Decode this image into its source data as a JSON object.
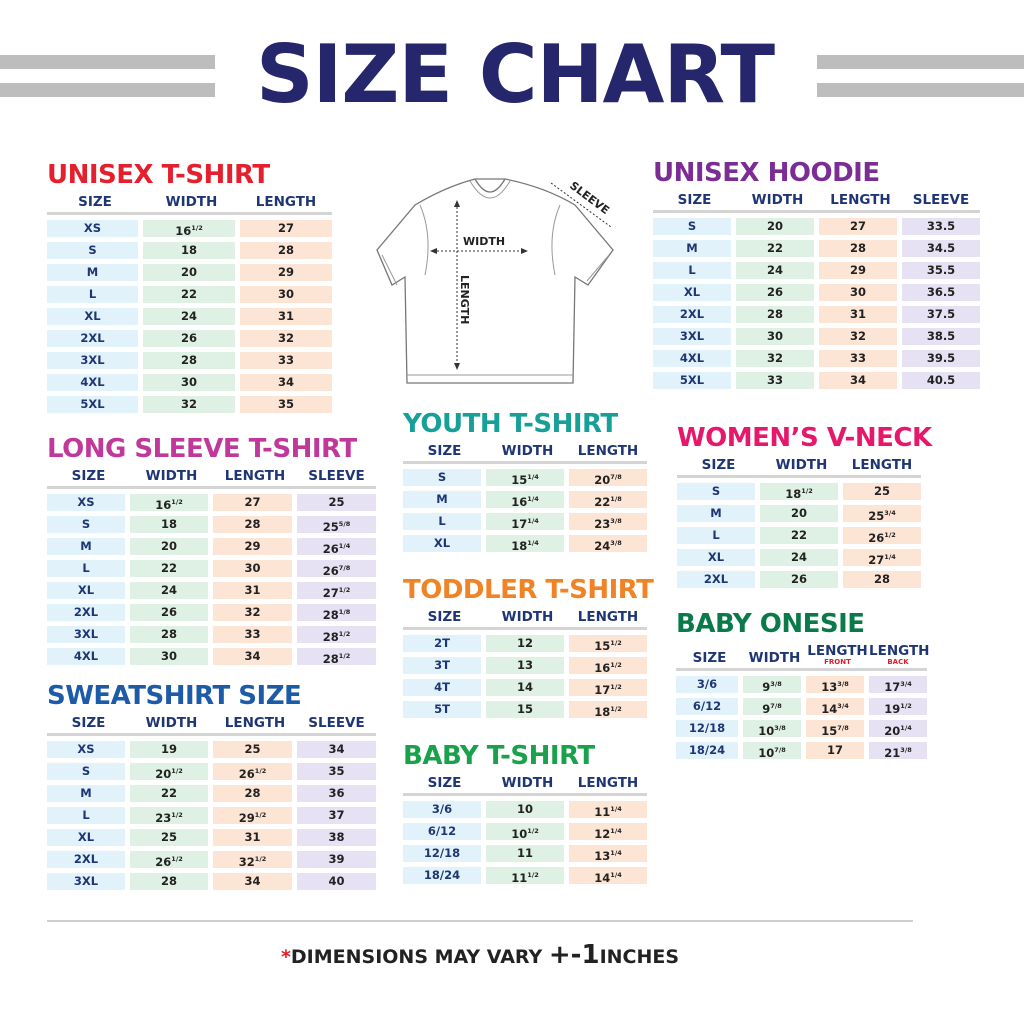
{
  "title": "SIZE CHART",
  "colors": {
    "title": "#25266b",
    "header": "#1f3674",
    "size_cell": "#e1f2fb",
    "width_cell": "#dff0e4",
    "length_cell": "#fde5d6",
    "sleeve_cell": "#e6e2f3"
  },
  "diagram": {
    "width_label": "WIDTH",
    "length_label": "LENGTH",
    "sleeve_label": "SLEEVE"
  },
  "tables": [
    {
      "id": "unisex-tshirt",
      "title": "UNISEX T-SHIRT",
      "color": "#e4202e",
      "headers": [
        "SIZE",
        "WIDTH",
        "LENGTH"
      ],
      "rows": [
        [
          "XS",
          "16 1/2",
          "27"
        ],
        [
          "S",
          "18",
          "28"
        ],
        [
          "M",
          "20",
          "29"
        ],
        [
          "L",
          "22",
          "30"
        ],
        [
          "XL",
          "24",
          "31"
        ],
        [
          "2XL",
          "26",
          "32"
        ],
        [
          "3XL",
          "28",
          "33"
        ],
        [
          "4XL",
          "30",
          "34"
        ],
        [
          "5XL",
          "32",
          "35"
        ]
      ]
    },
    {
      "id": "long-sleeve",
      "title": "LONG SLEEVE T-SHIRT",
      "color": "#c0399a",
      "headers": [
        "SIZE",
        "WIDTH",
        "LENGTH",
        "SLEEVE"
      ],
      "rows": [
        [
          "XS",
          "16 1/2",
          "27",
          "25"
        ],
        [
          "S",
          "18",
          "28",
          "25 5/8"
        ],
        [
          "M",
          "20",
          "29",
          "26 1/4"
        ],
        [
          "L",
          "22",
          "30",
          "26 7/8"
        ],
        [
          "XL",
          "24",
          "31",
          "27 1/2"
        ],
        [
          "2XL",
          "26",
          "32",
          "28 1/8"
        ],
        [
          "3XL",
          "28",
          "33",
          "28 1/2"
        ],
        [
          "4XL",
          "30",
          "34",
          "28 1/2"
        ]
      ]
    },
    {
      "id": "sweatshirt",
      "title": "SWEATSHIRT SIZE",
      "color": "#1d5aa8",
      "headers": [
        "SIZE",
        "WIDTH",
        "LENGTH",
        "SLEEVE"
      ],
      "rows": [
        [
          "XS",
          "19",
          "25",
          "34"
        ],
        [
          "S",
          "20 1/2",
          "26 1/2",
          "35"
        ],
        [
          "M",
          "22",
          "28",
          "36"
        ],
        [
          "L",
          "23 1/2",
          "29 1/2",
          "37"
        ],
        [
          "XL",
          "25",
          "31",
          "38"
        ],
        [
          "2XL",
          "26 1/2",
          "32 1/2",
          "39"
        ],
        [
          "3XL",
          "28",
          "34",
          "40"
        ]
      ]
    },
    {
      "id": "youth",
      "title": "YOUTH T-SHIRT",
      "color": "#17a097",
      "headers": [
        "SIZE",
        "WIDTH",
        "LENGTH"
      ],
      "rows": [
        [
          "S",
          "15 1/4",
          "20 7/8"
        ],
        [
          "M",
          "16 1/4",
          "22 1/8"
        ],
        [
          "L",
          "17 1/4",
          "23 3/8"
        ],
        [
          "XL",
          "18 1/4",
          "24 3/8"
        ]
      ]
    },
    {
      "id": "toddler",
      "title": "TODDLER T-SHIRT",
      "color": "#f08325",
      "headers": [
        "SIZE",
        "WIDTH",
        "LENGTH"
      ],
      "rows": [
        [
          "2T",
          "12",
          "15 1/2"
        ],
        [
          "3T",
          "13",
          "16 1/2"
        ],
        [
          "4T",
          "14",
          "17 1/2"
        ],
        [
          "5T",
          "15",
          "18 1/2"
        ]
      ]
    },
    {
      "id": "baby-tshirt",
      "title": "BABY T-SHIRT",
      "color": "#1aa14b",
      "headers": [
        "SIZE",
        "WIDTH",
        "LENGTH"
      ],
      "rows": [
        [
          "3/6",
          "10",
          "11 1/4"
        ],
        [
          "6/12",
          "10 1/2",
          "12 1/4"
        ],
        [
          "12/18",
          "11",
          "13 1/4"
        ],
        [
          "18/24",
          "11 1/2",
          "14 1/4"
        ]
      ]
    },
    {
      "id": "hoodie",
      "title": "UNISEX HOODIE",
      "color": "#7b2d94",
      "headers": [
        "SIZE",
        "WIDTH",
        "LENGTH",
        "SLEEVE"
      ],
      "rows": [
        [
          "S",
          "20",
          "27",
          "33.5"
        ],
        [
          "M",
          "22",
          "28",
          "34.5"
        ],
        [
          "L",
          "24",
          "29",
          "35.5"
        ],
        [
          "XL",
          "26",
          "30",
          "36.5"
        ],
        [
          "2XL",
          "28",
          "31",
          "37.5"
        ],
        [
          "3XL",
          "30",
          "32",
          "38.5"
        ],
        [
          "4XL",
          "32",
          "33",
          "39.5"
        ],
        [
          "5XL",
          "33",
          "34",
          "40.5"
        ]
      ]
    },
    {
      "id": "womens-vneck",
      "title": "WOMEN’S V-NECK",
      "color": "#e6186b",
      "headers": [
        "SIZE",
        "WIDTH",
        "LENGTH"
      ],
      "rows": [
        [
          "S",
          "18 1/2",
          "25"
        ],
        [
          "M",
          "20",
          "25 3/4"
        ],
        [
          "L",
          "22",
          "26 1/2"
        ],
        [
          "XL",
          "24",
          "27 1/4"
        ],
        [
          "2XL",
          "26",
          "28"
        ]
      ]
    },
    {
      "id": "baby-onesie",
      "title": "BABY ONESIE",
      "color": "#0b7a4a",
      "headers": [
        "SIZE",
        "WIDTH",
        "LENGTH",
        "LENGTH"
      ],
      "header_subs": [
        "",
        "",
        "FRONT",
        "BACK"
      ],
      "rows": [
        [
          "3/6",
          "9 3/8",
          "13 3/8",
          "17 3/4"
        ],
        [
          "6/12",
          "9 7/8",
          "14 3/4",
          "19 1/2"
        ],
        [
          "12/18",
          "10 3/8",
          "15 7/8",
          "20 1/4"
        ],
        [
          "18/24",
          "10 7/8",
          "17",
          "21 3/8"
        ]
      ]
    }
  ],
  "footer": {
    "asterisk": "*",
    "text": "DIMENSIONS MAY VARY",
    "plusminus": "+-1",
    "unit": "INCHES"
  }
}
